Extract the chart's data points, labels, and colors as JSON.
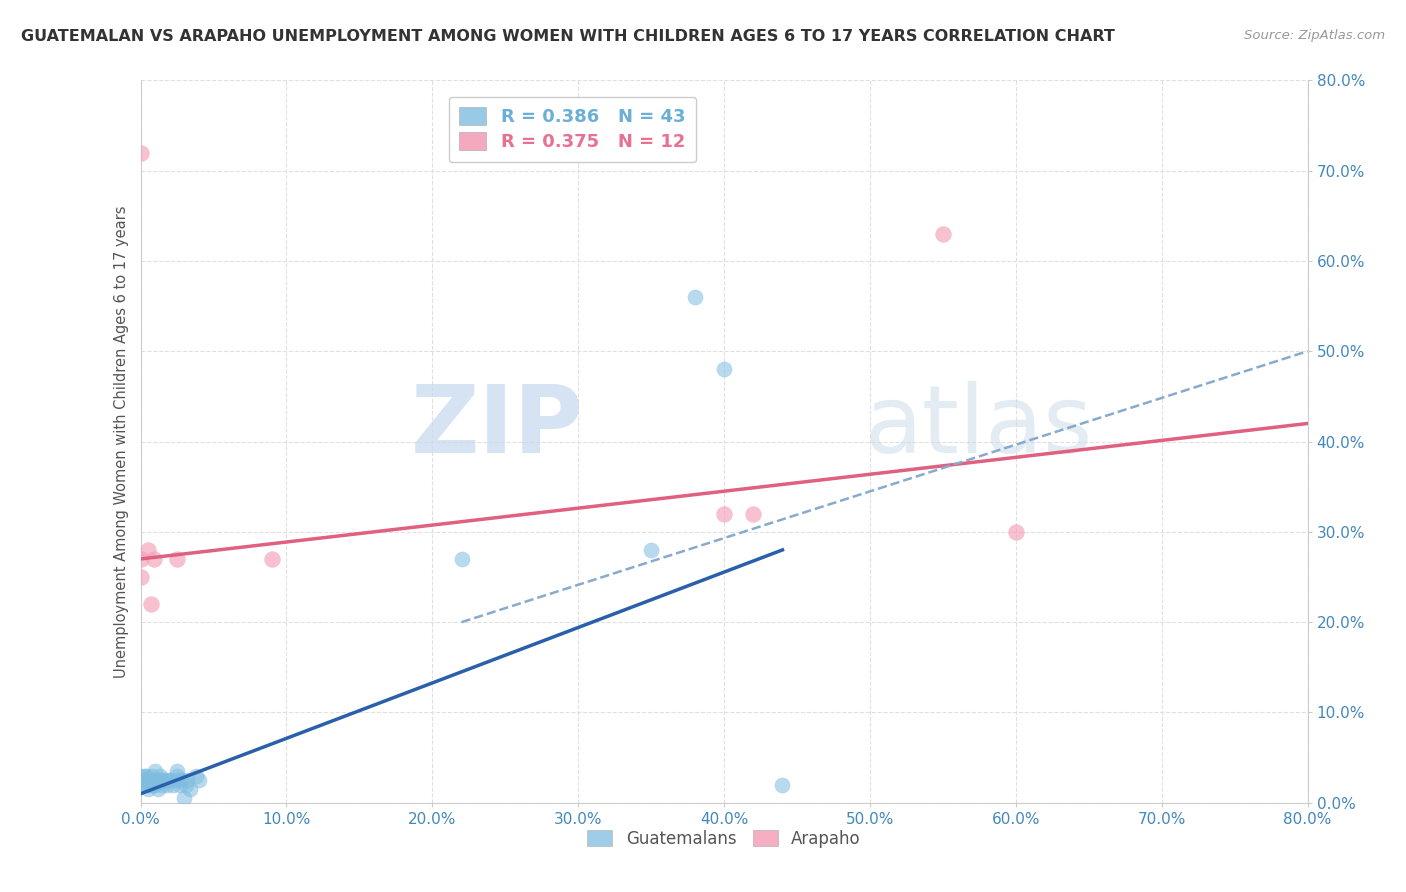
{
  "title": "GUATEMALAN VS ARAPAHO UNEMPLOYMENT AMONG WOMEN WITH CHILDREN AGES 6 TO 17 YEARS CORRELATION CHART",
  "source": "Source: ZipAtlas.com",
  "ylabel": "Unemployment Among Women with Children Ages 6 to 17 years",
  "xlim": [
    0.0,
    0.8
  ],
  "ylim": [
    0.0,
    0.8
  ],
  "legend_entries": [
    {
      "label": "R = 0.386   N = 43",
      "color": "#6baed6"
    },
    {
      "label": "R = 0.375   N = 12",
      "color": "#e87090"
    }
  ],
  "guatemalan_color": "#7fbde0",
  "arapaho_color": "#f4a0b8",
  "guatemalan_line_color": "#2a5faa",
  "arapaho_line_color": "#e06080",
  "dashed_line_color": "#88aacc",
  "background_color": "#ffffff",
  "grid_color": "#e0e0e0",
  "guatemalan_scatter": [
    [
      0.0,
      0.025
    ],
    [
      0.0,
      0.03
    ],
    [
      0.002,
      0.02
    ],
    [
      0.003,
      0.025
    ],
    [
      0.003,
      0.03
    ],
    [
      0.004,
      0.03
    ],
    [
      0.005,
      0.02
    ],
    [
      0.005,
      0.015
    ],
    [
      0.006,
      0.02
    ],
    [
      0.006,
      0.025
    ],
    [
      0.007,
      0.02
    ],
    [
      0.008,
      0.03
    ],
    [
      0.009,
      0.02
    ],
    [
      0.009,
      0.025
    ],
    [
      0.01,
      0.035
    ],
    [
      0.01,
      0.02
    ],
    [
      0.012,
      0.015
    ],
    [
      0.012,
      0.025
    ],
    [
      0.013,
      0.03
    ],
    [
      0.014,
      0.025
    ],
    [
      0.015,
      0.02
    ],
    [
      0.015,
      0.025
    ],
    [
      0.017,
      0.025
    ],
    [
      0.018,
      0.02
    ],
    [
      0.02,
      0.025
    ],
    [
      0.02,
      0.025
    ],
    [
      0.022,
      0.02
    ],
    [
      0.025,
      0.025
    ],
    [
      0.025,
      0.03
    ],
    [
      0.025,
      0.035
    ],
    [
      0.027,
      0.02
    ],
    [
      0.028,
      0.025
    ],
    [
      0.03,
      0.005
    ],
    [
      0.031,
      0.02
    ],
    [
      0.032,
      0.025
    ],
    [
      0.034,
      0.015
    ],
    [
      0.038,
      0.03
    ],
    [
      0.04,
      0.025
    ],
    [
      0.22,
      0.27
    ],
    [
      0.35,
      0.28
    ],
    [
      0.38,
      0.56
    ],
    [
      0.4,
      0.48
    ],
    [
      0.44,
      0.02
    ]
  ],
  "arapaho_scatter": [
    [
      0.0,
      0.72
    ],
    [
      0.0,
      0.27
    ],
    [
      0.0,
      0.25
    ],
    [
      0.005,
      0.28
    ],
    [
      0.007,
      0.22
    ],
    [
      0.009,
      0.27
    ],
    [
      0.025,
      0.27
    ],
    [
      0.09,
      0.27
    ],
    [
      0.4,
      0.32
    ],
    [
      0.42,
      0.32
    ],
    [
      0.55,
      0.63
    ],
    [
      0.6,
      0.3
    ]
  ],
  "guatemalan_trend_x": [
    0.0,
    0.44
  ],
  "guatemalan_trend_y": [
    0.01,
    0.28
  ],
  "arapaho_trend_x": [
    0.0,
    0.8
  ],
  "arapaho_trend_y": [
    0.27,
    0.42
  ],
  "dashed_trend_x": [
    0.22,
    0.8
  ],
  "dashed_trend_y": [
    0.2,
    0.5
  ]
}
